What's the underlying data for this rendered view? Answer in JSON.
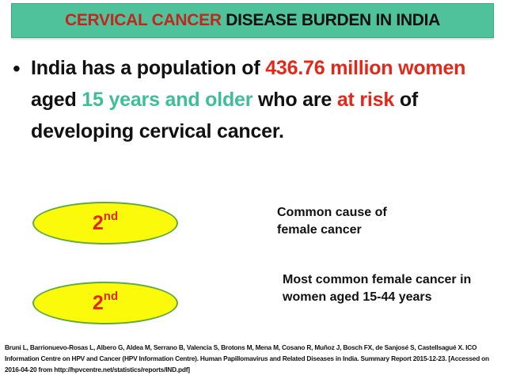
{
  "title": {
    "highlight": "CERVICAL CANCER",
    "rest": "DISEASE BURDEN IN INDIA"
  },
  "bullet": {
    "marker": "•",
    "part1": "India has a population of ",
    "population": "436.76 million",
    "women": "women",
    "part2": " aged ",
    "age_group": "15 years and older",
    "part3": " who are ",
    "risk": "at risk",
    "part4": " of developing cervical cancer."
  },
  "ranks": [
    {
      "number": "2",
      "suffix": "nd",
      "description": "Common cause of female cancer"
    },
    {
      "number": "2",
      "suffix": "nd",
      "description": "Most common female cancer in women aged 15-44 years"
    }
  ],
  "citation": "Bruni L, Barrionuevo-Rosas L, Albero G, Aldea M, Serrano B, Valencia S, Brotons M, Mena M, Cosano R, Muñoz J, Bosch FX, de Sanjosé S, Castellsagué X. ICO Information Centre on HPV and Cancer (HPV Information Centre). Human Papillomavirus and Related Diseases in India. Summary Report 2015-12-23. [Accessed on 2016-04-20 from http://hpvcentre.net/statistics/reports/IND.pdf]",
  "colors": {
    "title_background": "#4fc29c",
    "title_highlight": "#c0281f",
    "emphasis_red": "#e32718",
    "emphasis_teal": "#3cbf97",
    "oval_fill": "#fbfa0a",
    "oval_border": "#62a93f"
  }
}
